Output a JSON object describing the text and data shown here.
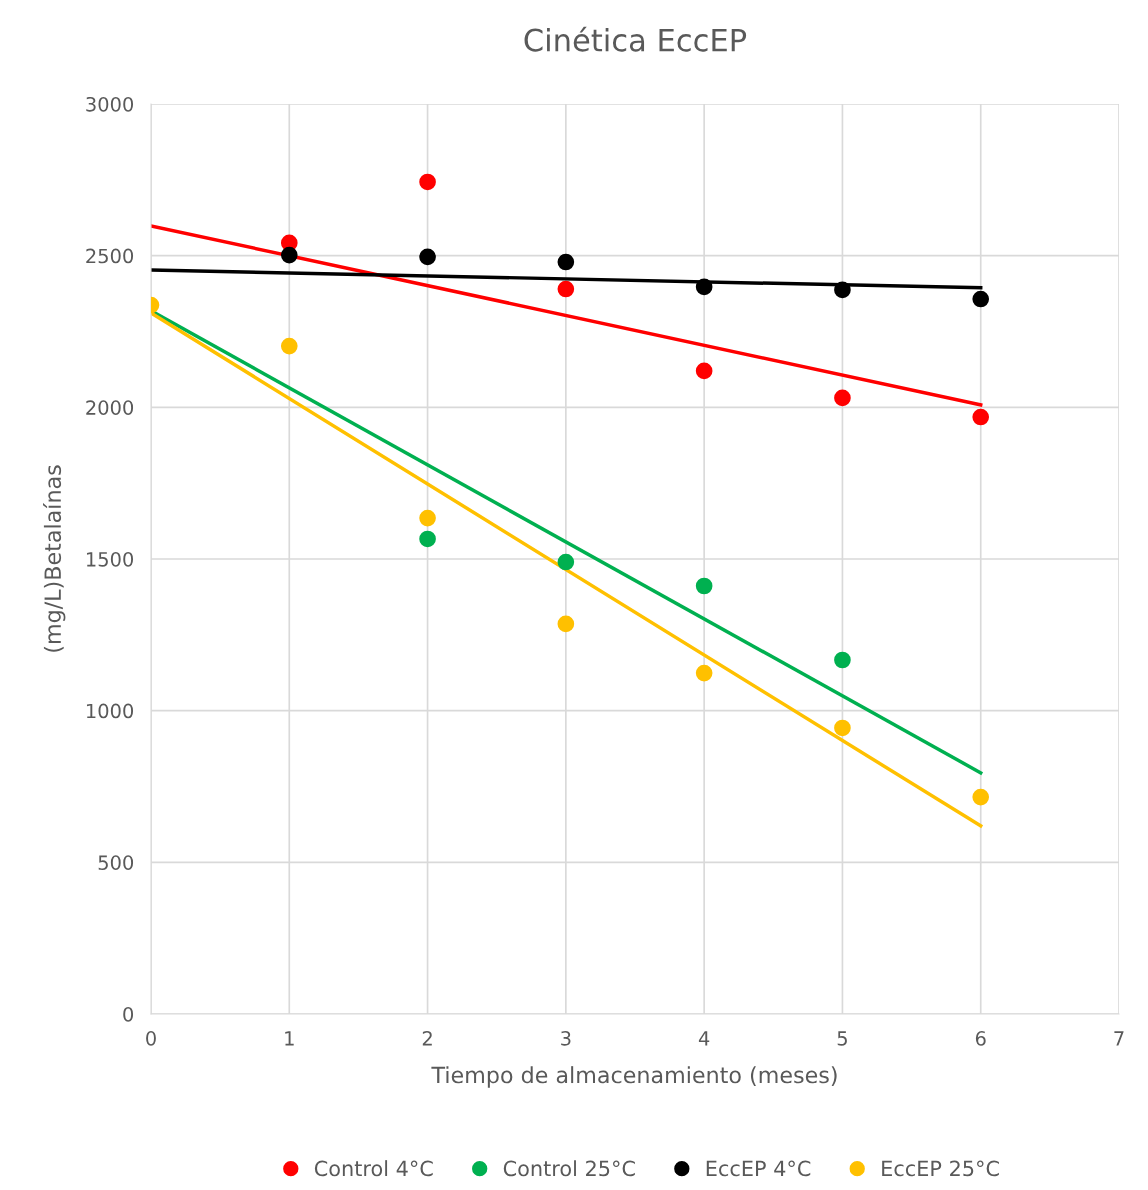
{
  "chart_data": {
    "type": "scatter",
    "title": "Cinética EccEP",
    "xlabel": "Tiempo de almacenamiento (meses)",
    "ylabel": "(mg/L)Betalaínas",
    "xlim": [
      0,
      7
    ],
    "xticks": [
      0,
      1,
      2,
      3,
      4,
      5,
      6,
      7
    ],
    "ylim": [
      0,
      3000
    ],
    "yticks": [
      0,
      500,
      1000,
      1500,
      2000,
      2500,
      3000
    ],
    "grid": true,
    "legend": "bottom",
    "marker": "circle",
    "series": [
      {
        "name": "Control 4°C",
        "color": "#ff0000",
        "x": [
          1,
          2,
          3,
          4,
          5,
          6
        ],
        "values": [
          2542,
          2743,
          2390,
          2120,
          2031,
          1968
        ]
      },
      {
        "name": "Control 25°C",
        "color": "#00b050",
        "x": [
          2,
          3,
          4,
          5
        ],
        "values": [
          1566,
          1490,
          1411,
          1167
        ]
      },
      {
        "name": "EccEP 4°C",
        "color": "#000000",
        "x": [
          1,
          2,
          3,
          4,
          5,
          6
        ],
        "values": [
          2502,
          2496,
          2479,
          2397,
          2387,
          2357
        ]
      },
      {
        "name": "EccEP 25°C",
        "color": "#ffc000",
        "x": [
          0,
          1,
          2,
          3,
          4,
          5,
          6
        ],
        "values": [
          2337,
          2202,
          1635,
          1286,
          1124,
          943,
          715
        ]
      },
      {
        "type": "line",
        "color": "#ff0000",
        "marker": "none",
        "x": [
          0,
          6
        ],
        "values": [
          2598,
          2008
        ]
      },
      {
        "type": "line",
        "color": "#00b050",
        "marker": "none",
        "x": [
          0,
          6
        ],
        "values": [
          2318,
          795
        ]
      },
      {
        "type": "line",
        "color": "#000000",
        "marker": "none",
        "x": [
          0,
          6
        ],
        "values": [
          2453,
          2394
        ]
      },
      {
        "type": "line",
        "color": "#ffc000",
        "marker": "none",
        "x": [
          0,
          6
        ],
        "values": [
          2311,
          620
        ]
      }
    ]
  }
}
